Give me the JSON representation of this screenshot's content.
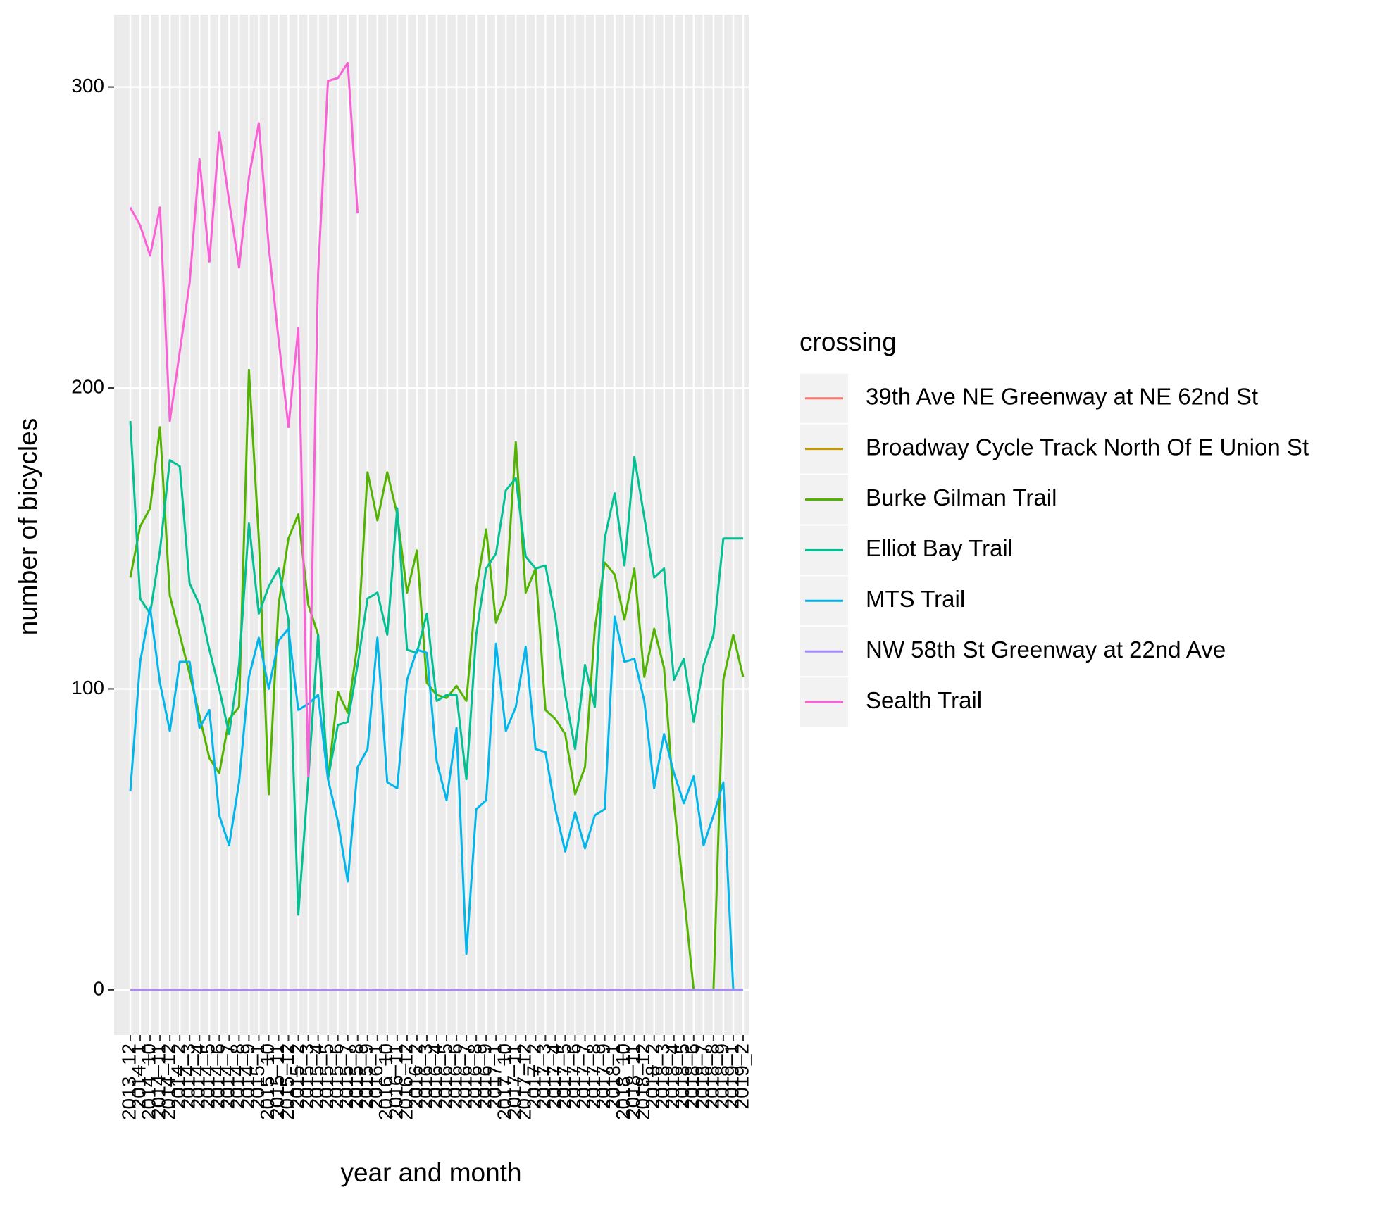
{
  "chart_data": {
    "type": "line",
    "x_label": "year and month",
    "y_label": "number of bicycles",
    "legend_title": "crossing",
    "categories": [
      "2013_12",
      "2014_1",
      "2014_10",
      "2014_11",
      "2014_12",
      "2014_2",
      "2014_3",
      "2014_4",
      "2014_5",
      "2014_6",
      "2014_7",
      "2014_8",
      "2014_9",
      "2015_1",
      "2015_10",
      "2015_11",
      "2015_12",
      "2015_2",
      "2015_3",
      "2015_4",
      "2015_5",
      "2015_6",
      "2015_7",
      "2015_8",
      "2015_9",
      "2016_1",
      "2016_10",
      "2016_11",
      "2016_12",
      "2016_2",
      "2016_3",
      "2016_4",
      "2016_5",
      "2016_6",
      "2016_7",
      "2016_8",
      "2016_9",
      "2017_1",
      "2017_10",
      "2017_11",
      "2017_12",
      "2017_2",
      "2017_3",
      "2017_4",
      "2017_5",
      "2017_6",
      "2017_7",
      "2017_8",
      "2017_9",
      "2018_1",
      "2018_10",
      "2018_11",
      "2018_12",
      "2018_2",
      "2018_3",
      "2018_4",
      "2018_5",
      "2018_6",
      "2018_7",
      "2018_8",
      "2018_9",
      "2019_1",
      "2019_2"
    ],
    "series": [
      {
        "name": "39th Ave NE Greenway at NE 62nd St",
        "color": "#F8766D",
        "values": [
          0,
          0,
          0,
          0,
          0,
          0,
          0,
          0,
          0,
          0,
          0,
          0,
          0,
          0,
          0,
          0,
          0,
          0,
          0,
          0,
          0,
          0,
          0,
          0,
          0,
          0,
          0,
          0,
          0,
          0,
          0,
          0,
          0,
          0,
          0,
          0,
          0,
          0,
          0,
          0,
          0,
          0,
          0,
          0,
          0,
          0,
          0,
          0,
          0,
          0,
          0,
          0,
          0,
          0,
          0,
          0,
          0,
          0,
          0,
          0,
          0,
          0,
          0
        ]
      },
      {
        "name": "Broadway Cycle Track North Of E Union St",
        "color": "#C49A00",
        "values": [
          0,
          0,
          0,
          0,
          0,
          0,
          0,
          0,
          0,
          0,
          0,
          0,
          0,
          0,
          0,
          0,
          0,
          0,
          0,
          0,
          0,
          0,
          0,
          0,
          0,
          0,
          0,
          0,
          0,
          0,
          0,
          0,
          0,
          0,
          0,
          0,
          0,
          0,
          0,
          0,
          0,
          0,
          0,
          0,
          0,
          0,
          0,
          0,
          0,
          0,
          0,
          0,
          0,
          0,
          0,
          0,
          0,
          0,
          0,
          0,
          0,
          0,
          0
        ]
      },
      {
        "name": "Burke Gilman Trail",
        "color": "#53B400",
        "values": [
          137,
          154,
          160,
          187,
          131,
          118,
          105,
          91,
          77,
          72,
          90,
          94,
          206,
          150,
          65,
          128,
          150,
          158,
          128,
          118,
          70,
          99,
          92,
          115,
          172,
          156,
          172,
          158,
          132,
          146,
          102,
          98,
          97,
          101,
          96,
          133,
          153,
          122,
          131,
          182,
          132,
          140,
          93,
          90,
          85,
          65,
          74,
          120,
          142,
          138,
          123,
          140,
          104,
          120,
          107,
          62,
          32,
          0,
          0,
          0,
          103,
          118,
          104
        ]
      },
      {
        "name": "Elliot Bay Trail",
        "color": "#00C094",
        "values": [
          189,
          130,
          125,
          146,
          176,
          174,
          135,
          128,
          113,
          100,
          85,
          108,
          155,
          125,
          134,
          140,
          123,
          25,
          70,
          118,
          70,
          88,
          89,
          108,
          130,
          132,
          118,
          160,
          113,
          112,
          125,
          96,
          98,
          98,
          70,
          118,
          140,
          145,
          166,
          170,
          144,
          140,
          141,
          124,
          98,
          80,
          108,
          94,
          150,
          165,
          141,
          177,
          157,
          137,
          140,
          103,
          110,
          89,
          108,
          118,
          150,
          150,
          150
        ]
      },
      {
        "name": "MTS Trail",
        "color": "#00B6EB",
        "values": [
          66,
          109,
          127,
          102,
          86,
          109,
          109,
          87,
          93,
          58,
          48,
          69,
          104,
          117,
          100,
          116,
          120,
          93,
          95,
          98,
          70,
          56,
          36,
          74,
          80,
          117,
          69,
          67,
          103,
          113,
          112,
          76,
          63,
          87,
          12,
          60,
          63,
          115,
          86,
          94,
          114,
          80,
          79,
          60,
          46,
          59,
          47,
          58,
          60,
          124,
          109,
          110,
          96,
          67,
          85,
          72,
          62,
          71,
          48,
          58,
          69,
          0,
          0
        ]
      },
      {
        "name": "NW 58th St Greenway at 22nd Ave",
        "color": "#A58AFF",
        "values": [
          0,
          0,
          0,
          0,
          0,
          0,
          0,
          0,
          0,
          0,
          0,
          0,
          0,
          0,
          0,
          0,
          0,
          0,
          0,
          0,
          0,
          0,
          0,
          0,
          0,
          0,
          0,
          0,
          0,
          0,
          0,
          0,
          0,
          0,
          0,
          0,
          0,
          0,
          0,
          0,
          0,
          0,
          0,
          0,
          0,
          0,
          0,
          0,
          0,
          0,
          0,
          0,
          0,
          0,
          0,
          0,
          0,
          0,
          0,
          0,
          0,
          0,
          0
        ]
      },
      {
        "name": "Sealth Trail",
        "color": "#FB61D7",
        "values": [
          260,
          254,
          244,
          260,
          189,
          212,
          235,
          276,
          242,
          285,
          262,
          240,
          270,
          288,
          247,
          216,
          187,
          220,
          71,
          238,
          302,
          303,
          308,
          258,
          null,
          null,
          null,
          null,
          null,
          null,
          null,
          null,
          null,
          null,
          null,
          null,
          null,
          null,
          null,
          null,
          null,
          null,
          null,
          null,
          null,
          null,
          null,
          null,
          null,
          null,
          null,
          null,
          null,
          null,
          null,
          null,
          null,
          null,
          null,
          null,
          null,
          null,
          null
        ]
      }
    ],
    "ylim": [
      -15,
      324
    ],
    "yticks": [
      0,
      100,
      200,
      300
    ],
    "grid": true,
    "legend": "right"
  }
}
